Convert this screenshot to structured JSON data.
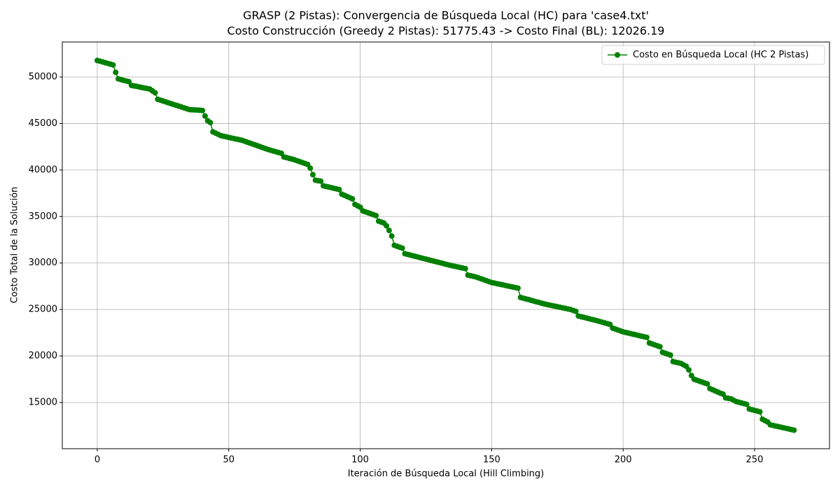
{
  "chart_data": {
    "type": "line",
    "title": "GRASP (2 Pistas): Convergencia de Búsqueda Local (HC) para 'case4.txt'",
    "subtitle": "Costo Construcción (Greedy 2 Pistas): 51775.43 -> Costo Final (BL): 12026.19",
    "xlabel": "Iteración de Búsqueda Local (Hill Climbing)",
    "ylabel": "Costo Total de la Solución",
    "xlim": [
      -13.3,
      278.5
    ],
    "ylim": [
      10033,
      53763
    ],
    "xticks": [
      0,
      50,
      100,
      150,
      200,
      250
    ],
    "yticks": [
      15000,
      20000,
      25000,
      30000,
      35000,
      40000,
      45000,
      50000
    ],
    "grid": true,
    "legend": "upper right",
    "x": [
      0,
      1,
      2,
      3,
      4,
      5,
      6,
      7,
      8,
      9,
      10,
      11,
      12,
      13,
      14,
      15,
      16,
      17,
      18,
      19,
      20,
      21,
      22,
      23,
      24,
      25,
      26,
      27,
      28,
      29,
      30,
      31,
      32,
      33,
      34,
      35,
      36,
      37,
      38,
      39,
      40,
      41,
      42,
      43,
      44,
      45,
      46,
      47,
      48,
      49,
      50,
      51,
      52,
      53,
      54,
      55,
      56,
      57,
      58,
      59,
      60,
      61,
      62,
      63,
      64,
      65,
      66,
      67,
      68,
      69,
      70,
      71,
      72,
      73,
      74,
      75,
      76,
      77,
      78,
      79,
      80,
      81,
      82,
      83,
      84,
      85,
      86,
      87,
      88,
      89,
      90,
      91,
      92,
      93,
      94,
      95,
      96,
      97,
      98,
      99,
      100,
      101,
      102,
      103,
      104,
      105,
      106,
      107,
      108,
      109,
      110,
      111,
      112,
      113,
      114,
      115,
      116,
      117,
      118,
      119,
      120,
      121,
      122,
      123,
      124,
      125,
      126,
      127,
      128,
      129,
      130,
      131,
      132,
      133,
      134,
      135,
      136,
      137,
      138,
      139,
      140,
      141,
      142,
      143,
      144,
      145,
      146,
      147,
      148,
      149,
      150,
      151,
      152,
      153,
      154,
      155,
      156,
      157,
      158,
      159,
      160,
      161,
      162,
      163,
      164,
      165,
      166,
      167,
      168,
      169,
      170,
      171,
      172,
      173,
      174,
      175,
      176,
      177,
      178,
      179,
      180,
      181,
      182,
      183,
      184,
      185,
      186,
      187,
      188,
      189,
      190,
      191,
      192,
      193,
      194,
      195,
      196,
      197,
      198,
      199,
      200,
      201,
      202,
      203,
      204,
      205,
      206,
      207,
      208,
      209,
      210,
      211,
      212,
      213,
      214,
      215,
      216,
      217,
      218,
      219,
      220,
      221,
      222,
      223,
      224,
      225,
      226,
      227,
      228,
      229,
      230,
      231,
      232,
      233,
      234,
      235,
      236,
      237,
      238,
      239,
      240,
      241,
      242,
      243,
      244,
      245,
      246,
      247,
      248,
      249,
      250,
      251,
      252,
      253,
      254,
      255,
      256,
      257,
      258,
      259,
      260,
      261,
      262,
      263,
      264,
      265
    ],
    "series": [
      {
        "name": "Costo en Búsqueda Local (HC 2 Pistas)",
        "color": "#008000",
        "values": [
          51775,
          51700,
          51620,
          51540,
          51460,
          51380,
          51300,
          50500,
          49800,
          49720,
          49640,
          49570,
          49500,
          49100,
          49040,
          48990,
          48930,
          48870,
          48810,
          48760,
          48700,
          48500,
          48300,
          47600,
          47510,
          47420,
          47330,
          47230,
          47140,
          47050,
          46960,
          46870,
          46780,
          46680,
          46590,
          46500,
          46480,
          46460,
          46440,
          46420,
          46400,
          45800,
          45300,
          45100,
          44100,
          43970,
          43830,
          43700,
          43630,
          43570,
          43500,
          43440,
          43380,
          43320,
          43260,
          43200,
          43100,
          43000,
          42900,
          42800,
          42700,
          42600,
          42500,
          42400,
          42300,
          42200,
          42120,
          42040,
          41960,
          41880,
          41800,
          41400,
          41330,
          41250,
          41180,
          41100,
          41000,
          40900,
          40800,
          40700,
          40600,
          40200,
          39500,
          38900,
          38850,
          38800,
          38300,
          38230,
          38170,
          38100,
          38030,
          37970,
          37900,
          37400,
          37280,
          37150,
          37030,
          36900,
          36300,
          36150,
          36000,
          35600,
          35500,
          35400,
          35300,
          35200,
          35100,
          34500,
          34400,
          34300,
          34000,
          33500,
          32900,
          31900,
          31800,
          31700,
          31600,
          31000,
          30930,
          30850,
          30780,
          30710,
          30640,
          30560,
          30490,
          30420,
          30350,
          30270,
          30200,
          30130,
          30060,
          29990,
          29910,
          29840,
          29770,
          29700,
          29640,
          29580,
          29520,
          29460,
          29400,
          28700,
          28630,
          28570,
          28500,
          28400,
          28300,
          28200,
          28100,
          28000,
          27900,
          27840,
          27780,
          27720,
          27660,
          27600,
          27540,
          27480,
          27420,
          27360,
          27300,
          26300,
          26220,
          26140,
          26070,
          25990,
          25910,
          25830,
          25760,
          25680,
          25600,
          25540,
          25480,
          25420,
          25360,
          25300,
          25240,
          25180,
          25120,
          25060,
          25000,
          24900,
          24800,
          24300,
          24230,
          24160,
          24090,
          24010,
          23940,
          23870,
          23800,
          23720,
          23640,
          23560,
          23480,
          23400,
          23000,
          22900,
          22800,
          22700,
          22600,
          22530,
          22470,
          22400,
          22330,
          22270,
          22200,
          22130,
          22070,
          22000,
          21400,
          21300,
          21200,
          21100,
          21000,
          20400,
          20300,
          20200,
          20100,
          19400,
          19330,
          19270,
          19200,
          19050,
          18900,
          18500,
          17900,
          17500,
          17400,
          17300,
          17200,
          17100,
          17000,
          16500,
          16380,
          16250,
          16130,
          16000,
          15900,
          15500,
          15450,
          15400,
          15250,
          15100,
          15030,
          14950,
          14880,
          14800,
          14300,
          14230,
          14150,
          14080,
          14000,
          13200,
          13050,
          12900,
          12600,
          12540,
          12470,
          12410,
          12350,
          12280,
          12220,
          12160,
          12090,
          12026.19
        ]
      }
    ]
  }
}
